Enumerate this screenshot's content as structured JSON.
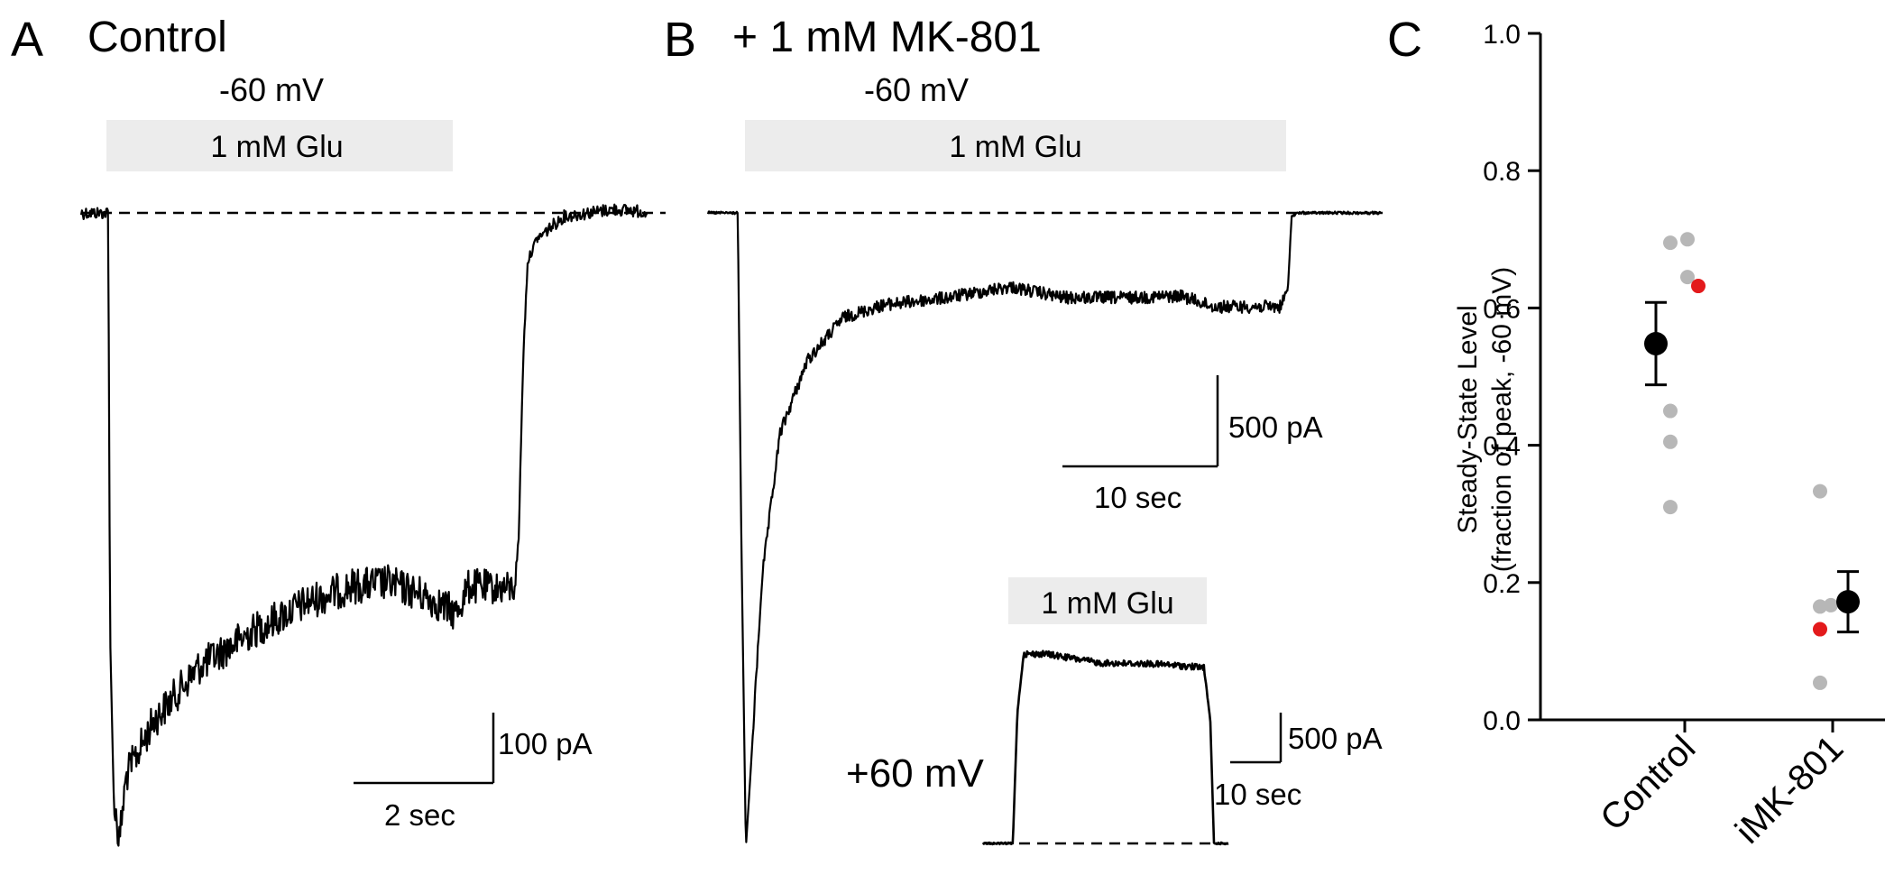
{
  "panels": {
    "a": {
      "letter": "A",
      "title": "Control",
      "voltage": "-60 mV",
      "application": "1 mM Glu",
      "scale_current": "100 pA",
      "scale_time": "2 sec"
    },
    "b": {
      "letter": "B",
      "title": "+ 1 mM MK-801",
      "voltage": "-60 mV",
      "application": "1 mM Glu",
      "scale_current": "500 pA",
      "scale_time": "10 sec",
      "inset": {
        "voltage": "+60 mV",
        "application": "1 mM Glu",
        "scale_current": "500 pA",
        "scale_time": "10 sec"
      }
    },
    "c": {
      "letter": "C"
    }
  },
  "colors": {
    "trace": "#000000",
    "application_bar": "#ececec",
    "individual_point": "#b7b7b7",
    "highlight_point": "#e31a1c",
    "mean_point": "#000000"
  },
  "chart_data": {
    "type": "scatter",
    "categories": [
      "Control",
      "iMK-801"
    ],
    "ylabel": [
      "Steady-State Level",
      "(fraction of peak, -60 mV)"
    ],
    "ylim": [
      0,
      1.0
    ],
    "yticks": [
      "0.0",
      "0.2",
      "0.4",
      "0.6",
      "0.8",
      "1.0"
    ],
    "grid": false,
    "series": [
      {
        "role": "individual",
        "category": "Control",
        "values": [
          0.695,
          0.7,
          0.645,
          0.45,
          0.405,
          0.31
        ]
      },
      {
        "role": "highlight",
        "category": "Control",
        "values": [
          0.632
        ]
      },
      {
        "role": "individual",
        "category": "iMK-801",
        "values": [
          0.333,
          0.167,
          0.165,
          0.054
        ]
      },
      {
        "role": "highlight",
        "category": "iMK-801",
        "values": [
          0.132
        ]
      },
      {
        "role": "mean",
        "category": "Control",
        "values": [
          0.548
        ],
        "error": [
          0.488,
          0.608
        ]
      },
      {
        "role": "mean",
        "category": "iMK-801",
        "values": [
          0.172
        ],
        "error": [
          0.128,
          0.216
        ]
      }
    ]
  }
}
